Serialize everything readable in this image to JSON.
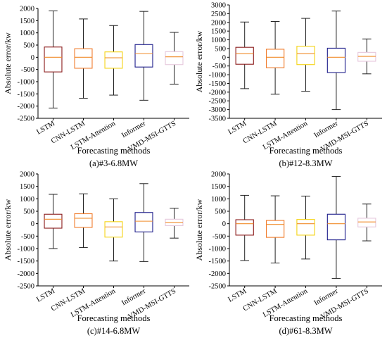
{
  "chart_data": [
    {
      "type": "box",
      "caption": "(a)#3-6.8MW",
      "xlabel": "Forecasting methods",
      "ylabel": "Absolute error/kw",
      "ylim": [
        -2500,
        2000
      ],
      "yticks": [
        2000,
        1500,
        1000,
        500,
        0,
        -500,
        -1000,
        -1500,
        -2000,
        -2500
      ],
      "boxes": [
        {
          "name": "LSTM",
          "color": "#8b1a1a",
          "min": -2080,
          "q1": -600,
          "median": 0,
          "q3": 420,
          "max": 1900
        },
        {
          "name": "CNN-LSTM",
          "color": "#f07b2a",
          "min": -1680,
          "q1": -450,
          "median": 0,
          "q3": 350,
          "max": 1570
        },
        {
          "name": "LSTM-Attention",
          "color": "#f5d313",
          "min": -1550,
          "q1": -450,
          "median": -20,
          "q3": 220,
          "max": 1300
        },
        {
          "name": "Informer",
          "color": "#1c1c8a",
          "min": -1760,
          "q1": -400,
          "median": 150,
          "q3": 520,
          "max": 1880
        },
        {
          "name": "VMD-MSI-GTTS",
          "color": "#e6c8dc",
          "min": -1100,
          "q1": -300,
          "median": 20,
          "q3": 230,
          "max": 1020
        }
      ]
    },
    {
      "type": "box",
      "caption": "(b)#12-8.3MW",
      "xlabel": "Forecasting methods",
      "ylabel": "Absolute error/kw",
      "ylim": [
        -3500,
        3000
      ],
      "yticks": [
        3000,
        2500,
        2000,
        1500,
        1000,
        500,
        0,
        -500,
        -1000,
        -1500,
        -2000,
        -2500,
        -3000,
        -3500
      ],
      "boxes": [
        {
          "name": "LSTM",
          "color": "#8b1a1a",
          "min": -1800,
          "q1": -400,
          "median": 200,
          "q3": 570,
          "max": 2020
        },
        {
          "name": "CNN-LSTM",
          "color": "#f07b2a",
          "min": -2120,
          "q1": -600,
          "median": 0,
          "q3": 460,
          "max": 2050
        },
        {
          "name": "LSTM-Attention",
          "color": "#f5d313",
          "min": -1950,
          "q1": -420,
          "median": 200,
          "q3": 630,
          "max": 2230
        },
        {
          "name": "Informer",
          "color": "#1c1c8a",
          "min": -3000,
          "q1": -880,
          "median": 0,
          "q3": 520,
          "max": 2650
        },
        {
          "name": "VMD-MSI-GTTS",
          "color": "#e6c8dc",
          "min": -950,
          "q1": -230,
          "median": 50,
          "q3": 280,
          "max": 1050
        }
      ]
    },
    {
      "type": "box",
      "caption": "(c)#14-6.8MW",
      "xlabel": "Forecasting methods",
      "ylabel": "Absolute error/kw",
      "ylim": [
        -2500,
        2000
      ],
      "yticks": [
        2000,
        1500,
        1000,
        500,
        0,
        -500,
        -1000,
        -1500,
        -2000,
        -2500
      ],
      "boxes": [
        {
          "name": "LSTM",
          "color": "#8b1a1a",
          "min": -1000,
          "q1": -180,
          "median": 180,
          "q3": 380,
          "max": 1180
        },
        {
          "name": "CNN-LSTM",
          "color": "#f07b2a",
          "min": -960,
          "q1": -150,
          "median": 220,
          "q3": 400,
          "max": 1200
        },
        {
          "name": "LSTM-Attention",
          "color": "#f5d313",
          "min": -1500,
          "q1": -540,
          "median": -130,
          "q3": 80,
          "max": 1000
        },
        {
          "name": "Informer",
          "color": "#1c1c8a",
          "min": -1520,
          "q1": -330,
          "median": 100,
          "q3": 450,
          "max": 1610
        },
        {
          "name": "VMD-MSI-GTTS",
          "color": "#e6c8dc",
          "min": -580,
          "q1": -80,
          "median": 50,
          "q3": 180,
          "max": 620
        }
      ]
    },
    {
      "type": "box",
      "caption": "(d)#61-8.3MW",
      "xlabel": "Forecasting methods",
      "ylabel": "Absolute error/kw",
      "ylim": [
        -2500,
        2000
      ],
      "yticks": [
        2000,
        1500,
        1000,
        500,
        0,
        -500,
        -1000,
        -1500,
        -2000,
        -2500
      ],
      "boxes": [
        {
          "name": "LSTM",
          "color": "#8b1a1a",
          "min": -1480,
          "q1": -460,
          "median": 0,
          "q3": 160,
          "max": 1140
        },
        {
          "name": "CNN-LSTM",
          "color": "#f07b2a",
          "min": -1580,
          "q1": -550,
          "median": -30,
          "q3": 130,
          "max": 1120
        },
        {
          "name": "LSTM-Attention",
          "color": "#f5d313",
          "min": -1420,
          "q1": -460,
          "median": 0,
          "q3": 170,
          "max": 1110
        },
        {
          "name": "Informer",
          "color": "#1c1c8a",
          "min": -2200,
          "q1": -650,
          "median": 0,
          "q3": 380,
          "max": 1900
        },
        {
          "name": "VMD-MSI-GTTS",
          "color": "#e6c8dc",
          "min": -690,
          "q1": -130,
          "median": 70,
          "q3": 220,
          "max": 790
        }
      ]
    }
  ],
  "colors": {
    "median_line": "#f08c2a",
    "whisker": "#222222",
    "axis": "#000000"
  }
}
